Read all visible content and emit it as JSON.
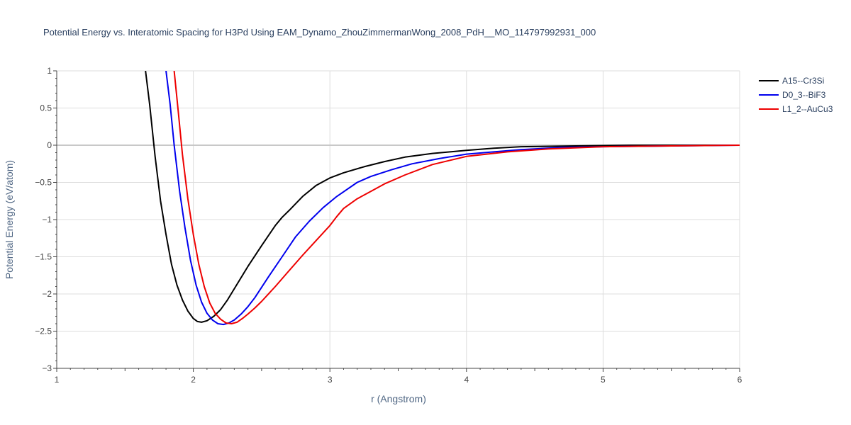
{
  "chart_data": {
    "type": "line",
    "title": "Potential Energy vs. Interatomic Spacing for H3Pd Using EAM_Dynamo_ZhouZimmermanWong_2008_PdH__MO_114797992931_000",
    "xlabel": "r (Angstrom)",
    "ylabel": "Potential Energy (eV/atom)",
    "xlim": [
      1,
      6
    ],
    "ylim": [
      -3,
      1
    ],
    "xticks": [
      1,
      2,
      3,
      4,
      5,
      6
    ],
    "xtick_labels": [
      "1",
      "2",
      "3",
      "4",
      "5",
      "6"
    ],
    "yticks": [
      -3,
      -2.5,
      -2,
      -1.5,
      -1,
      -0.5,
      0,
      0.5,
      1
    ],
    "ytick_labels": [
      "−3",
      "−2.5",
      "−2",
      "−1.5",
      "−1",
      "−0.5",
      "0",
      "0.5",
      "1"
    ],
    "grid": true,
    "legend_position": "top-right",
    "series": [
      {
        "name": "A15--Cr3Si",
        "color": "#000000",
        "x": [
          1.65,
          1.68,
          1.72,
          1.76,
          1.8,
          1.84,
          1.88,
          1.92,
          1.96,
          2.0,
          2.03,
          2.06,
          2.1,
          2.15,
          2.2,
          2.25,
          2.3,
          2.4,
          2.5,
          2.6,
          2.65,
          2.7,
          2.8,
          2.9,
          3.0,
          3.1,
          3.25,
          3.4,
          3.55,
          3.75,
          4.0,
          4.2,
          4.4,
          4.8,
          5.2,
          6.0
        ],
        "y": [
          1.0,
          0.55,
          -0.15,
          -0.75,
          -1.2,
          -1.6,
          -1.88,
          -2.08,
          -2.23,
          -2.33,
          -2.37,
          -2.38,
          -2.36,
          -2.3,
          -2.21,
          -2.08,
          -1.93,
          -1.63,
          -1.35,
          -1.08,
          -0.97,
          -0.88,
          -0.69,
          -0.54,
          -0.44,
          -0.37,
          -0.29,
          -0.22,
          -0.16,
          -0.11,
          -0.07,
          -0.04,
          -0.02,
          -0.01,
          0.0,
          0.0
        ]
      },
      {
        "name": "D0_3--BiF3",
        "color": "#0000ee",
        "x": [
          1.8,
          1.83,
          1.86,
          1.9,
          1.94,
          1.98,
          2.02,
          2.06,
          2.1,
          2.14,
          2.18,
          2.22,
          2.26,
          2.3,
          2.35,
          2.4,
          2.45,
          2.55,
          2.65,
          2.75,
          2.85,
          2.95,
          3.05,
          3.2,
          3.3,
          3.45,
          3.6,
          3.8,
          4.0,
          4.2,
          4.4,
          4.7,
          5.0,
          5.5,
          6.0
        ],
        "y": [
          1.0,
          0.55,
          0.0,
          -0.62,
          -1.12,
          -1.55,
          -1.88,
          -2.11,
          -2.26,
          -2.35,
          -2.4,
          -2.41,
          -2.39,
          -2.35,
          -2.27,
          -2.17,
          -2.05,
          -1.77,
          -1.5,
          -1.23,
          -1.02,
          -0.84,
          -0.69,
          -0.5,
          -0.42,
          -0.33,
          -0.25,
          -0.18,
          -0.12,
          -0.09,
          -0.06,
          -0.03,
          -0.02,
          -0.01,
          0.0
        ]
      },
      {
        "name": "L1_2--AuCu3",
        "color": "#ee0000",
        "x": [
          1.86,
          1.89,
          1.92,
          1.96,
          2.0,
          2.04,
          2.08,
          2.12,
          2.16,
          2.2,
          2.24,
          2.28,
          2.32,
          2.36,
          2.4,
          2.45,
          2.5,
          2.6,
          2.7,
          2.8,
          2.9,
          3.0,
          3.05,
          3.1,
          3.2,
          3.3,
          3.4,
          3.55,
          3.75,
          4.0,
          4.3,
          4.6,
          5.0,
          5.5,
          6.0
        ],
        "y": [
          1.0,
          0.45,
          -0.12,
          -0.72,
          -1.2,
          -1.6,
          -1.9,
          -2.12,
          -2.26,
          -2.34,
          -2.39,
          -2.4,
          -2.38,
          -2.33,
          -2.27,
          -2.19,
          -2.1,
          -1.9,
          -1.69,
          -1.48,
          -1.28,
          -1.08,
          -0.96,
          -0.85,
          -0.72,
          -0.62,
          -0.52,
          -0.4,
          -0.26,
          -0.15,
          -0.09,
          -0.05,
          -0.02,
          -0.01,
          0.0
        ]
      }
    ]
  }
}
